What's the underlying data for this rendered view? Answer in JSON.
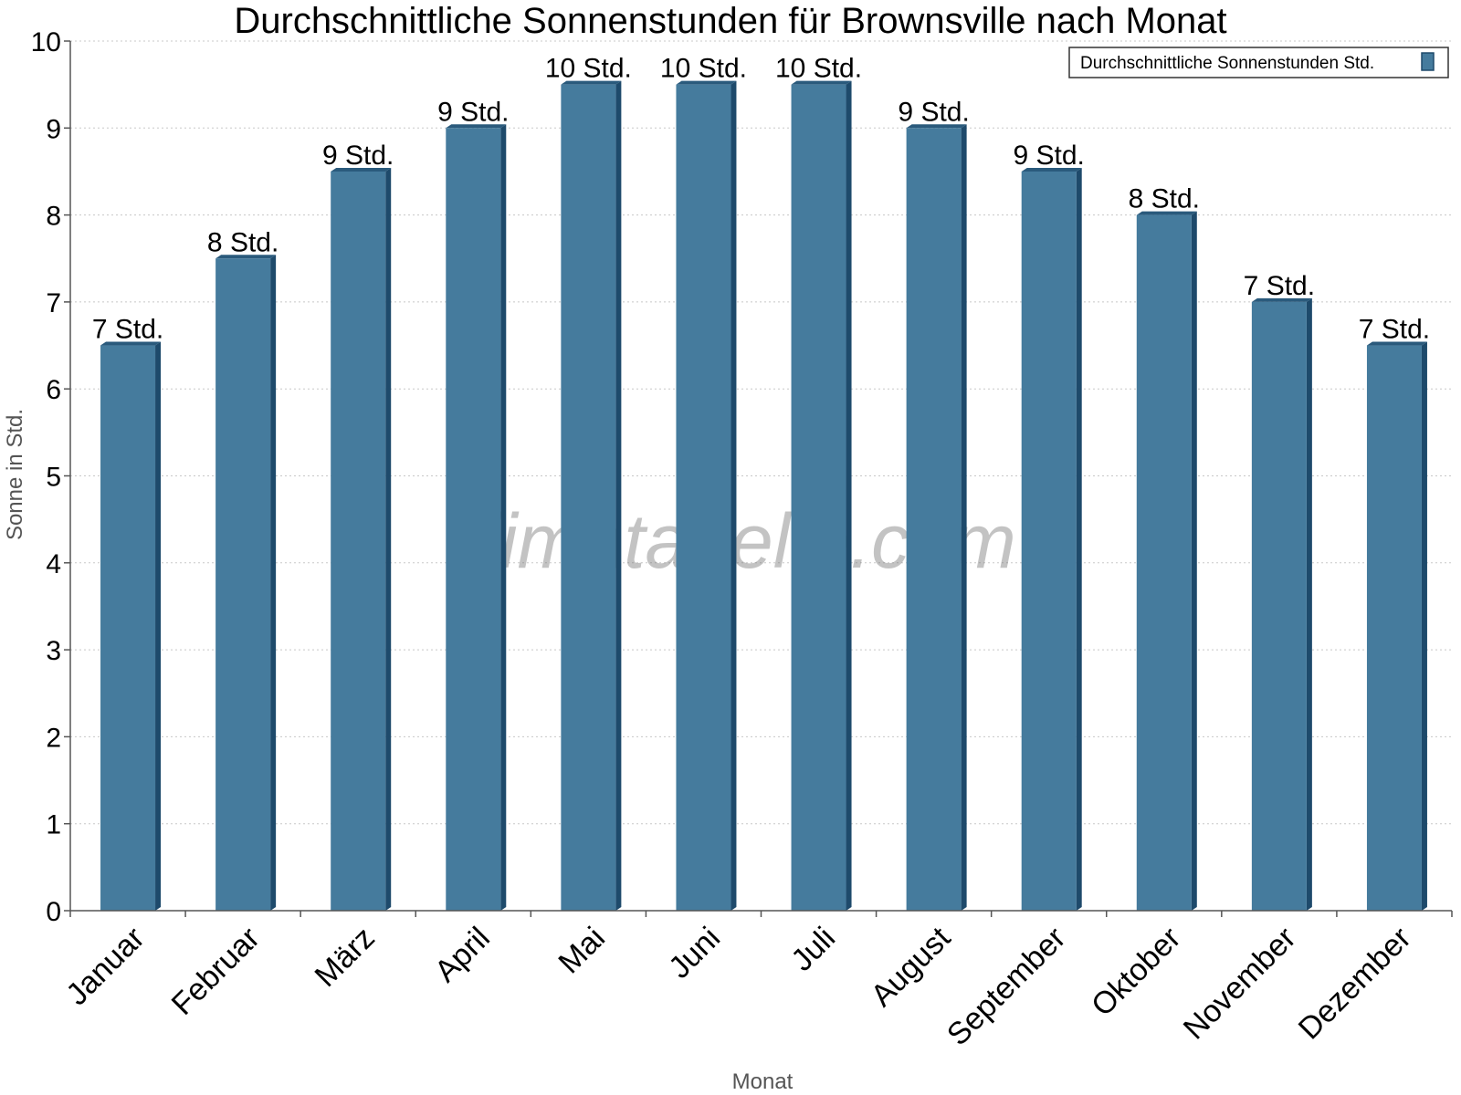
{
  "chart_data": {
    "type": "bar",
    "title": "Durchschnittliche Sonnenstunden für Brownsville nach Monat",
    "xlabel": "Monat",
    "ylabel": "Sonne in Std.",
    "categories": [
      "Januar",
      "Februar",
      "März",
      "April",
      "Mai",
      "Juni",
      "Juli",
      "August",
      "September",
      "Oktober",
      "November",
      "Dezember"
    ],
    "series": [
      {
        "name": "Durchschnittliche Sonnenstunden Std.",
        "values": [
          6.5,
          7.5,
          8.5,
          9.0,
          9.5,
          9.5,
          9.5,
          9.0,
          8.5,
          8.0,
          7.0,
          6.5
        ],
        "data_labels": [
          "7 Std.",
          "8 Std.",
          "9 Std.",
          "9 Std.",
          "10 Std.",
          "10 Std.",
          "10 Std.",
          "9 Std.",
          "9 Std.",
          "8 Std.",
          "7 Std.",
          "7 Std."
        ],
        "color": "#457b9d"
      }
    ],
    "ylim": [
      0,
      10
    ],
    "yticks": [
      0,
      1,
      2,
      3,
      4,
      5,
      6,
      7,
      8,
      9,
      10
    ],
    "grid": true,
    "legend_position": "top-right"
  },
  "colors": {
    "bar_front": "#457b9d",
    "bar_side": "#1e4a6b",
    "bar_top": "#2a5a7c",
    "grid": "#c8c8c8",
    "axis": "#555555"
  },
  "watermark": "klimatabelle.com"
}
